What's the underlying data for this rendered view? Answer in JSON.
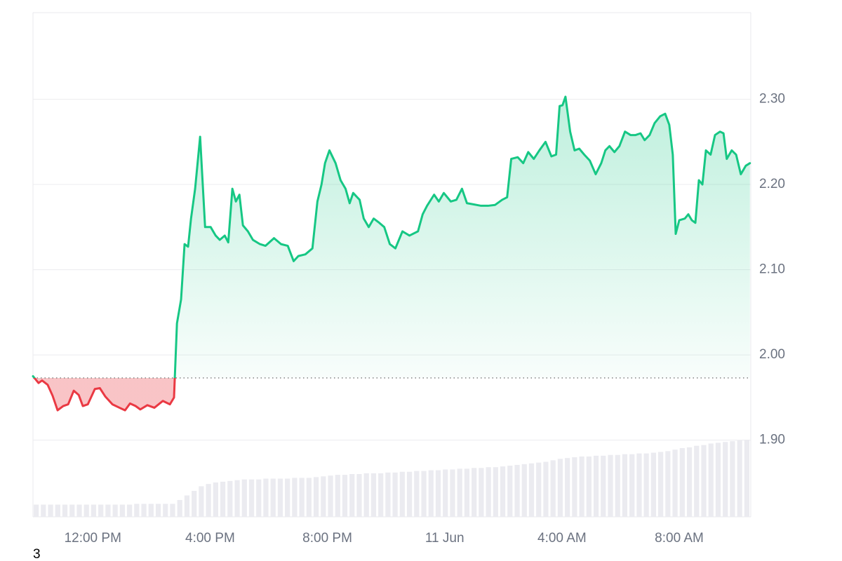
{
  "chart_data": {
    "type": "line",
    "x": [
      9.96,
      10.15,
      10.27,
      10.46,
      10.63,
      10.8,
      10.99,
      11.16,
      11.35,
      11.52,
      11.66,
      11.83,
      12.07,
      12.24,
      12.43,
      12.67,
      12.91,
      13.1,
      13.27,
      13.46,
      13.62,
      13.86,
      14.1,
      14.39,
      14.63,
      14.77,
      14.87,
      15.01,
      15.13,
      15.25,
      15.35,
      15.49,
      15.66,
      15.83,
      16.02,
      16.19,
      16.33,
      16.5,
      16.62,
      16.76,
      16.88,
      17.0,
      17.12,
      17.29,
      17.46,
      17.7,
      17.89,
      18.18,
      18.42,
      18.65,
      18.85,
      19.01,
      19.25,
      19.49,
      19.66,
      19.8,
      19.92,
      20.07,
      20.28,
      20.45,
      20.62,
      20.76,
      20.88,
      21.1,
      21.24,
      21.41,
      21.58,
      21.77,
      21.94,
      22.13,
      22.32,
      22.56,
      22.8,
      23.09,
      23.25,
      23.4,
      23.64,
      23.8,
      23.97,
      24.21,
      24.4,
      24.59,
      24.76,
      24.93,
      25.24,
      25.48,
      25.72,
      25.96,
      26.13,
      26.27,
      26.49,
      26.68,
      26.85,
      27.04,
      27.23,
      27.44,
      27.64,
      27.8,
      27.92,
      28.02,
      28.12,
      28.28,
      28.43,
      28.59,
      28.76,
      28.95,
      29.15,
      29.34,
      29.48,
      29.62,
      29.79,
      29.96,
      30.15,
      30.34,
      30.51,
      30.68,
      30.82,
      30.99,
      31.16,
      31.35,
      31.52,
      31.66,
      31.78,
      31.88,
      32.0,
      32.19,
      32.31,
      32.43,
      32.55,
      32.67,
      32.79,
      32.91,
      33.07,
      33.22,
      33.39,
      33.51,
      33.62,
      33.79,
      33.94,
      34.1,
      34.27,
      34.41
    ],
    "series": [
      {
        "color": "#16c784",
        "down_color": "#ea3943",
        "values": [
          1.975,
          1.967,
          1.97,
          1.965,
          1.952,
          1.935,
          1.94,
          1.942,
          1.958,
          1.953,
          1.94,
          1.942,
          1.96,
          1.961,
          1.951,
          1.942,
          1.938,
          1.935,
          1.943,
          1.94,
          1.936,
          1.941,
          1.938,
          1.946,
          1.942,
          1.95,
          2.037,
          2.065,
          2.13,
          2.127,
          2.16,
          2.195,
          2.256,
          2.15,
          2.15,
          2.14,
          2.135,
          2.14,
          2.132,
          2.195,
          2.18,
          2.188,
          2.152,
          2.145,
          2.135,
          2.13,
          2.128,
          2.137,
          2.13,
          2.128,
          2.11,
          2.116,
          2.118,
          2.125,
          2.18,
          2.2,
          2.225,
          2.24,
          2.225,
          2.205,
          2.195,
          2.178,
          2.19,
          2.182,
          2.16,
          2.15,
          2.16,
          2.155,
          2.15,
          2.13,
          2.125,
          2.145,
          2.14,
          2.145,
          2.165,
          2.175,
          2.188,
          2.18,
          2.19,
          2.18,
          2.182,
          2.195,
          2.178,
          2.177,
          2.175,
          2.175,
          2.176,
          2.182,
          2.185,
          2.23,
          2.232,
          2.225,
          2.238,
          2.23,
          2.24,
          2.25,
          2.233,
          2.235,
          2.292,
          2.293,
          2.303,
          2.262,
          2.24,
          2.242,
          2.235,
          2.228,
          2.212,
          2.225,
          2.24,
          2.245,
          2.238,
          2.245,
          2.262,
          2.258,
          2.258,
          2.26,
          2.252,
          2.258,
          2.272,
          2.28,
          2.283,
          2.27,
          2.235,
          2.142,
          2.158,
          2.16,
          2.165,
          2.158,
          2.155,
          2.205,
          2.2,
          2.24,
          2.235,
          2.258,
          2.262,
          2.26,
          2.23,
          2.24,
          2.235,
          2.212,
          2.222,
          2.225
        ]
      }
    ],
    "baseline": 1.973,
    "volume": {
      "color": "#ebebf0",
      "values": [
        16,
        16,
        16,
        16,
        16,
        16,
        16,
        16,
        16,
        16,
        16,
        16,
        16,
        16,
        17,
        17,
        17,
        17,
        17,
        17,
        22,
        28,
        34,
        40,
        43,
        45,
        46,
        47,
        48,
        49,
        49,
        49,
        50,
        50,
        50,
        50,
        51,
        51,
        51,
        52,
        53,
        54,
        55,
        55,
        56,
        56,
        57,
        57,
        57,
        58,
        58,
        59,
        59,
        60,
        60,
        61,
        61,
        62,
        62,
        63,
        63,
        64,
        64,
        65,
        65,
        66,
        67,
        68,
        69,
        70,
        71,
        72,
        74,
        76,
        77,
        78,
        79,
        79,
        80,
        80,
        81,
        81,
        82,
        82,
        83,
        83,
        84,
        85,
        86,
        88,
        90,
        91,
        93,
        94,
        96,
        97,
        98,
        99,
        100,
        101
      ]
    },
    "xlim": [
      9.96,
      34.44
    ],
    "xticks": [
      {
        "value": 12,
        "label": "12:00 PM"
      },
      {
        "value": 16,
        "label": "4:00 PM"
      },
      {
        "value": 20,
        "label": "8:00 PM"
      },
      {
        "value": 24,
        "label": "11 Jun"
      },
      {
        "value": 28,
        "label": "4:00 AM"
      },
      {
        "value": 32,
        "label": "8:00 AM"
      }
    ],
    "ylim": [
      1.81,
      2.4
    ],
    "yticks": [
      {
        "value": 1.9,
        "label": "1.90"
      },
      {
        "value": 2.0,
        "label": "2.00"
      },
      {
        "value": 2.1,
        "label": "2.10"
      },
      {
        "value": 2.2,
        "label": "2.20"
      },
      {
        "value": 2.3,
        "label": "2.30"
      }
    ],
    "grid": true,
    "footnote": "3"
  }
}
